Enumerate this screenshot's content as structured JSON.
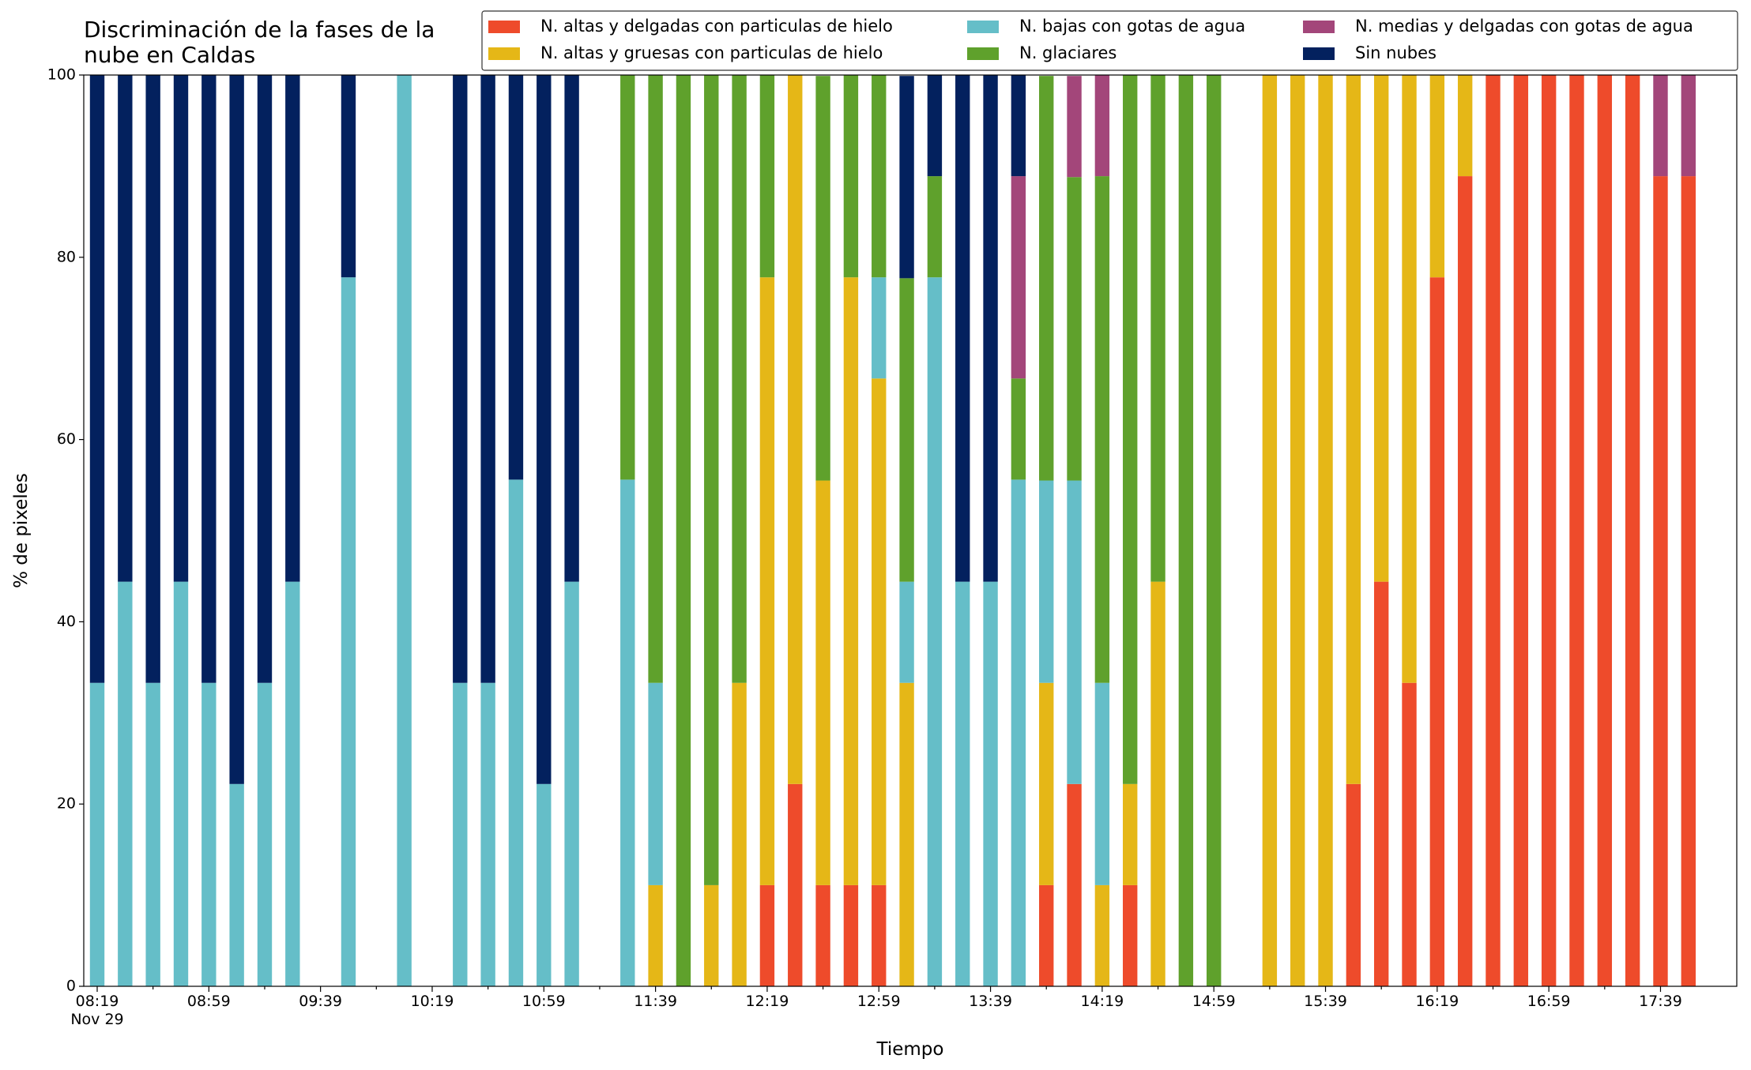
{
  "chart_data": {
    "type": "stacked_bar",
    "title": "Discriminación de la fases de la\nnube en Caldas",
    "xlabel": "Tiempo",
    "ylabel": "% de pixeles",
    "x_date": "Nov 29",
    "categories": [
      "08:19",
      null,
      null,
      null,
      "08:59",
      null,
      null,
      null,
      "09:39",
      null,
      null,
      null,
      "10:19",
      null,
      null,
      null,
      "10:59",
      null,
      null,
      null,
      "11:39",
      null,
      null,
      null,
      "12:19",
      null,
      null,
      null,
      "12:59",
      null,
      null,
      null,
      "13:39",
      null,
      null,
      null,
      "14:19",
      null,
      null,
      null,
      "14:59",
      null,
      null,
      null,
      "15:39",
      null,
      null,
      null,
      "16:19",
      null,
      null,
      null,
      "16:59",
      null,
      null,
      null,
      "17:39",
      null
    ],
    "ylim": [
      0,
      100
    ],
    "yticks": [
      0,
      20,
      40,
      60,
      80,
      100
    ],
    "grid": false,
    "legend": "top",
    "series": [
      {
        "name": "N. altas y delgadas con particulas de hielo",
        "color": "#ee4b2b",
        "values": [
          0,
          0,
          0,
          0,
          0,
          0,
          0,
          0,
          0,
          0,
          0,
          0,
          0,
          0,
          0,
          0,
          0,
          0,
          0,
          0,
          0,
          0,
          0,
          0,
          11.1,
          22.2,
          11.1,
          11.1,
          11.1,
          0,
          0,
          0,
          0,
          0,
          11.1,
          22.2,
          0,
          11.1,
          0,
          0,
          0,
          0,
          0,
          0,
          0,
          22.2,
          44.4,
          33.3,
          77.8,
          88.9,
          100,
          100,
          100,
          100,
          100,
          100,
          88.9,
          88.9
        ]
      },
      {
        "name": "N. altas y gruesas con particulas de hielo",
        "color": "#e5b717",
        "values": [
          0,
          0,
          0,
          0,
          0,
          0,
          0,
          0,
          0,
          0,
          0,
          0,
          0,
          0,
          0,
          0,
          0,
          0,
          0,
          0,
          11.1,
          0,
          11.1,
          33.3,
          66.7,
          77.8,
          44.4,
          66.7,
          55.6,
          33.3,
          0,
          0,
          0,
          0,
          22.2,
          0,
          11.1,
          11.1,
          44.4,
          0,
          0,
          0,
          100,
          100,
          100,
          77.8,
          55.6,
          66.7,
          22.2,
          11.1,
          0,
          0,
          0,
          0,
          0,
          0,
          0,
          0
        ]
      },
      {
        "name": "N. bajas con gotas de agua",
        "color": "#65bec8",
        "values": [
          33.3,
          44.4,
          33.3,
          44.4,
          33.3,
          22.2,
          33.3,
          44.4,
          0,
          77.8,
          0,
          100,
          0,
          33.3,
          33.3,
          55.6,
          22.2,
          44.4,
          0,
          55.6,
          22.2,
          0,
          0,
          0,
          0,
          0,
          0,
          0,
          11.1,
          11.1,
          77.8,
          44.4,
          44.4,
          55.6,
          22.2,
          33.3,
          22.2,
          0,
          0,
          0,
          0,
          0,
          0,
          0,
          0,
          0,
          0,
          0,
          0,
          0,
          0,
          0,
          0,
          0,
          0,
          0,
          0,
          0
        ]
      },
      {
        "name": "N. glaciares",
        "color": "#5fa12c",
        "values": [
          0,
          0,
          0,
          0,
          0,
          0,
          0,
          0,
          0,
          0,
          0,
          0,
          0,
          0,
          0,
          0,
          0,
          0,
          0,
          44.4,
          66.7,
          100,
          88.9,
          66.7,
          22.2,
          0,
          44.4,
          22.2,
          22.2,
          33.3,
          11.1,
          0,
          0,
          11.1,
          44.4,
          33.3,
          55.6,
          77.8,
          55.6,
          100,
          100,
          0,
          0,
          0,
          0,
          0,
          0,
          0,
          0,
          0,
          0,
          0,
          0,
          0,
          0,
          0,
          0,
          0
        ]
      },
      {
        "name": "N. medias y delgadas con gotas de agua",
        "color": "#a3467a",
        "values": [
          0,
          0,
          0,
          0,
          0,
          0,
          0,
          0,
          0,
          0,
          0,
          0,
          0,
          0,
          0,
          0,
          0,
          0,
          0,
          0,
          0,
          0,
          0,
          0,
          0,
          0,
          0,
          0,
          0,
          0,
          0,
          0,
          0,
          22.2,
          0,
          11.1,
          11.1,
          0,
          0,
          0,
          0,
          0,
          0,
          0,
          0,
          0,
          0,
          0,
          0,
          0,
          0,
          0,
          0,
          0,
          0,
          0,
          11.1,
          11.1
        ]
      },
      {
        "name": "Sin nubes",
        "color": "#03215e",
        "values": [
          66.7,
          55.6,
          66.7,
          55.6,
          66.7,
          77.8,
          66.7,
          55.6,
          0,
          22.2,
          0,
          0,
          0,
          66.7,
          66.7,
          44.4,
          77.8,
          55.6,
          0,
          0,
          0,
          0,
          0,
          0,
          0,
          0,
          0,
          0,
          0,
          22.2,
          11.1,
          55.6,
          55.6,
          11.1,
          0,
          0,
          0,
          0,
          0,
          0,
          0,
          0,
          0,
          0,
          0,
          0,
          0,
          0,
          0,
          0,
          0,
          0,
          0,
          0,
          0,
          0,
          0,
          0
        ]
      }
    ]
  }
}
